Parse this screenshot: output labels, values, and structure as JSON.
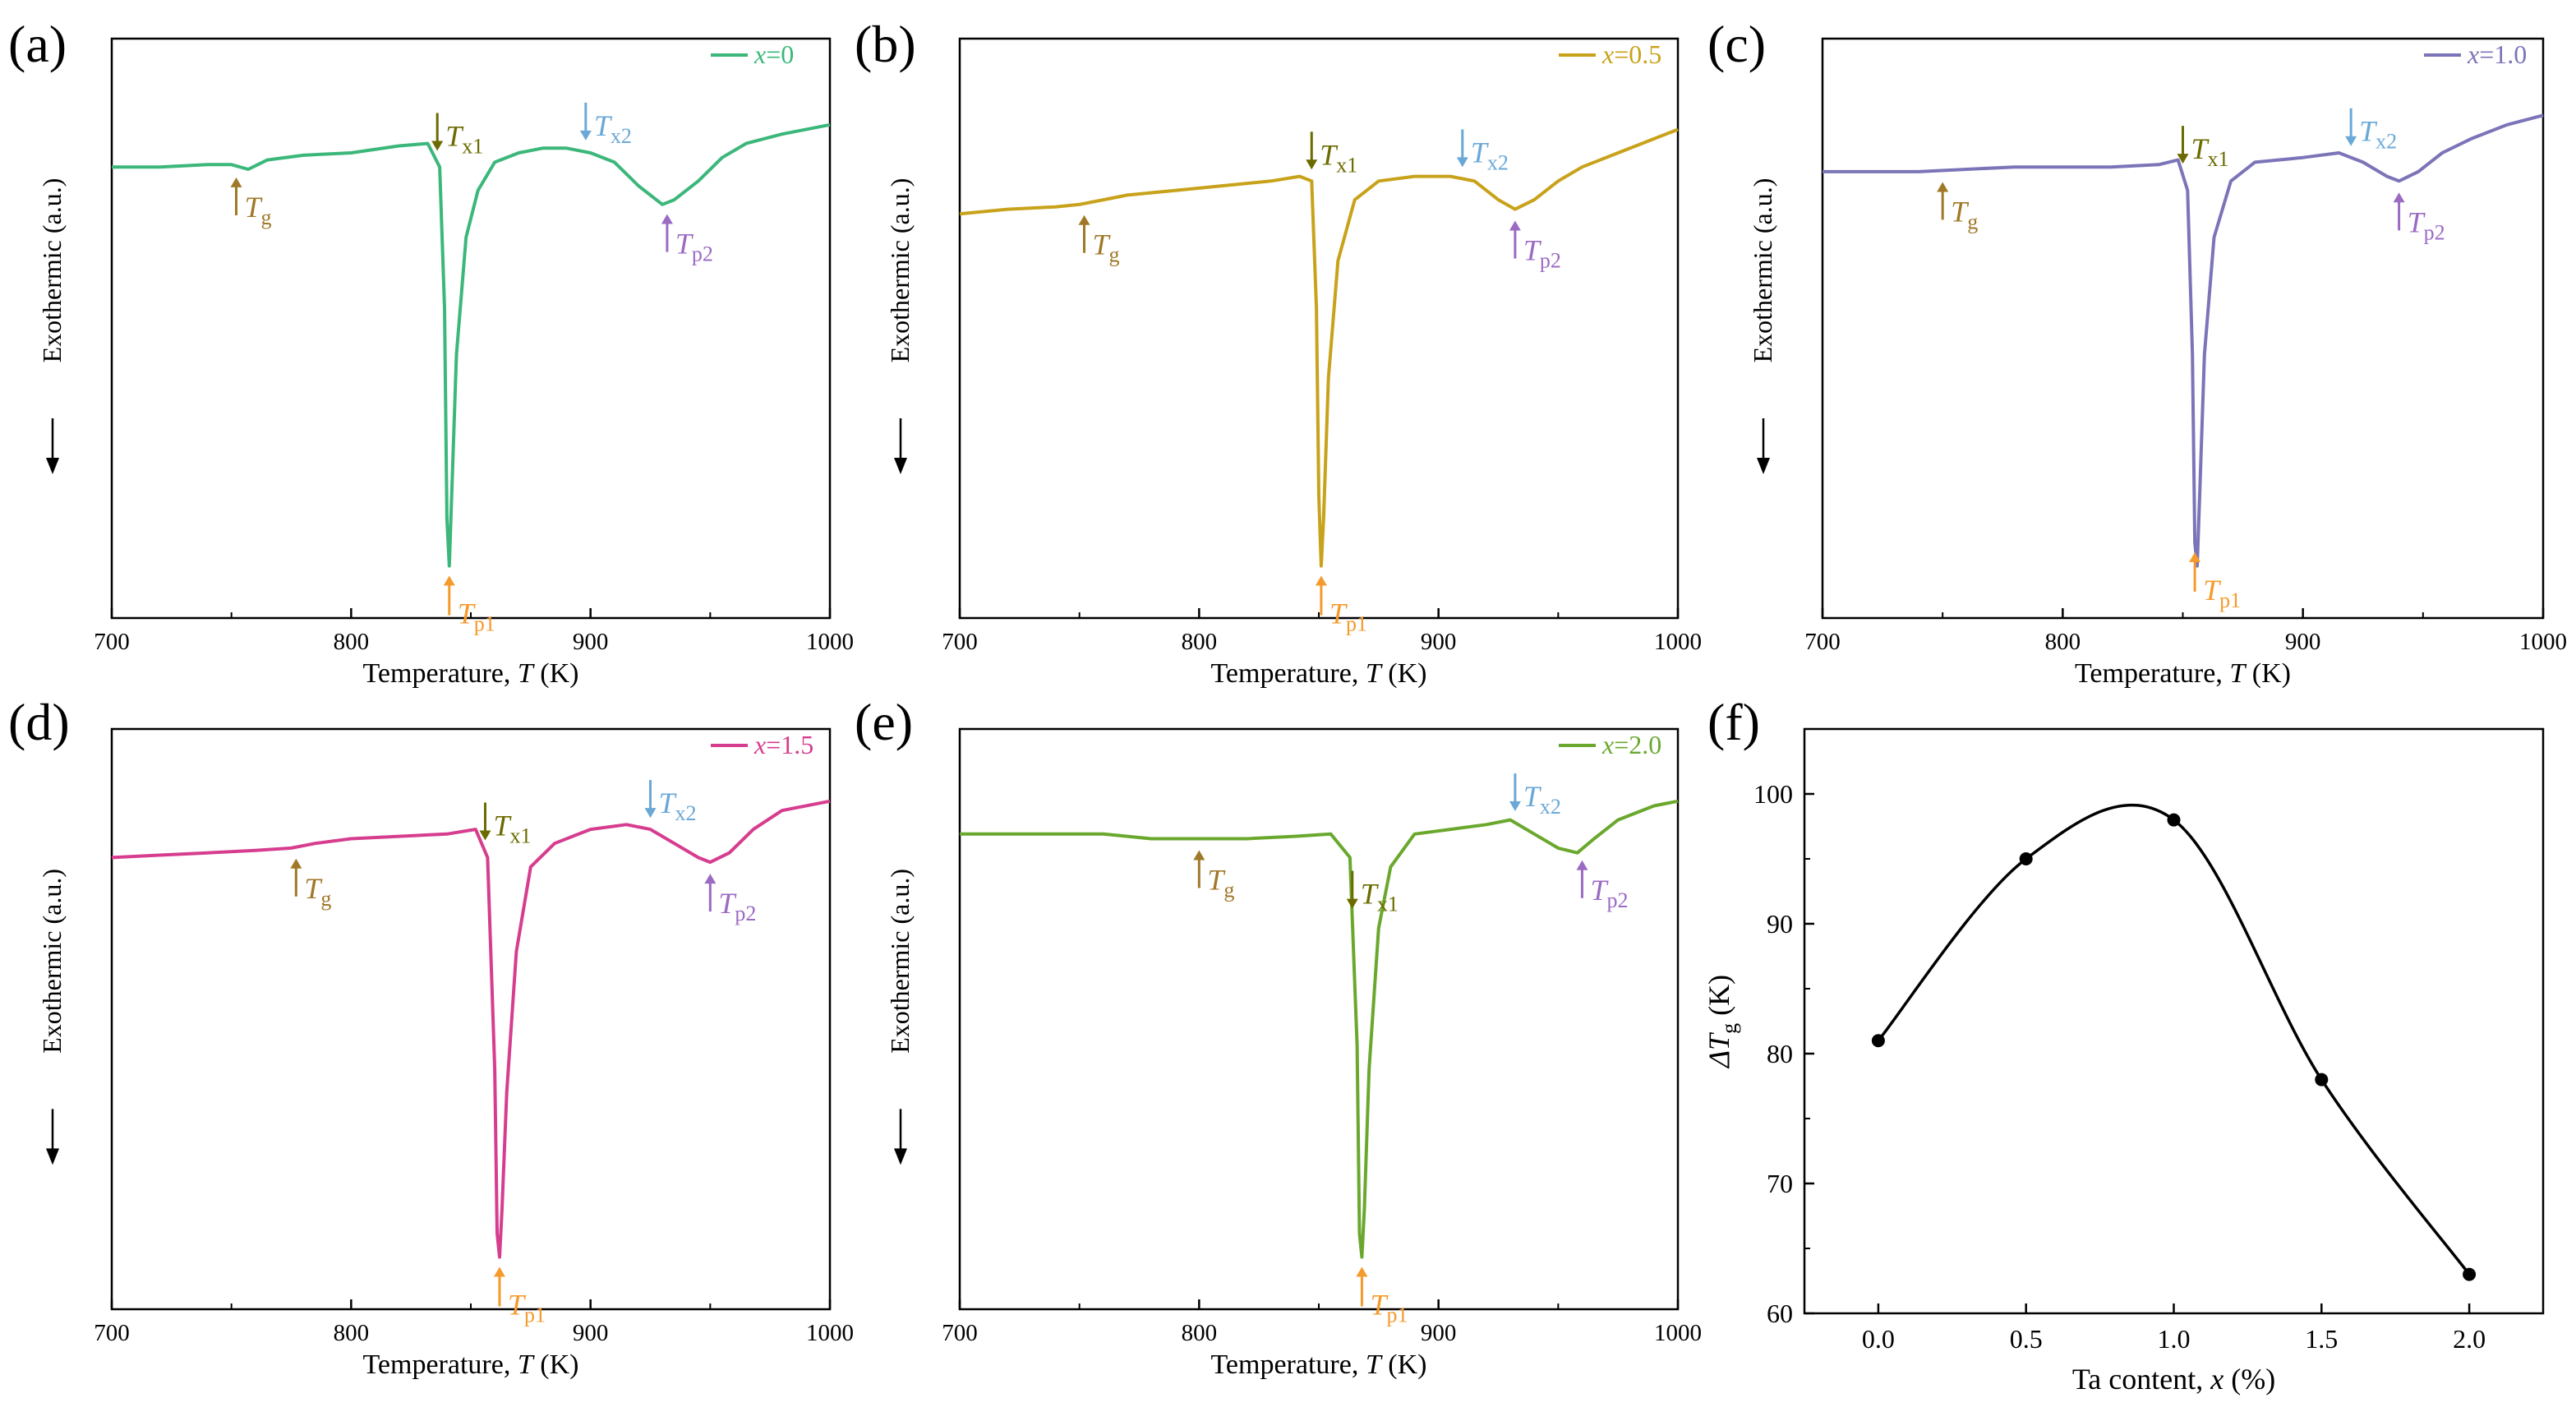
{
  "chart_data": [
    {
      "id": "a",
      "panel_label": "(a)",
      "type": "line",
      "legend": "x=0",
      "legend_var": "x",
      "legend_value": "=0",
      "color": "#3cb77a",
      "xlim": [
        700,
        1000
      ],
      "x_ticks": [
        700,
        800,
        900,
        1000
      ],
      "xlabel": "Temperature, T (K)",
      "xlabel_pre": "Temperature, ",
      "xlabel_var": "T",
      "xlabel_post": " (K)",
      "ylabel": "Exothermic (a.u.)",
      "series": [
        {
          "name": "x=0",
          "x": [
            700,
            720,
            740,
            750,
            757,
            765,
            780,
            800,
            820,
            832,
            837,
            839,
            840,
            841,
            842,
            844,
            848,
            853,
            860,
            870,
            880,
            890,
            900,
            910,
            920,
            930,
            935,
            945,
            955,
            965,
            980,
            1000
          ],
          "y": [
            0.85,
            0.85,
            0.855,
            0.855,
            0.845,
            0.865,
            0.875,
            0.88,
            0.895,
            0.9,
            0.85,
            0.55,
            0.1,
            0.0,
            0.15,
            0.45,
            0.7,
            0.8,
            0.86,
            0.88,
            0.89,
            0.89,
            0.88,
            0.86,
            0.81,
            0.77,
            0.78,
            0.82,
            0.87,
            0.9,
            0.92,
            0.94
          ]
        }
      ],
      "annotations": [
        {
          "base": "T",
          "sub": "g",
          "x": 752,
          "dir": "up",
          "color": "#a07828"
        },
        {
          "base": "T",
          "sub": "x1",
          "x": 836,
          "dir": "down",
          "color": "#6b6b00"
        },
        {
          "base": "T",
          "sub": "p1",
          "x": 841,
          "dir": "up",
          "color": "#f59a2c"
        },
        {
          "base": "T",
          "sub": "x2",
          "x": 898,
          "dir": "down",
          "color": "#6aa8d8"
        },
        {
          "base": "T",
          "sub": "p2",
          "x": 932,
          "dir": "up",
          "color": "#9b6bc3"
        }
      ]
    },
    {
      "id": "b",
      "panel_label": "(b)",
      "type": "line",
      "legend": "x=0.5",
      "legend_var": "x",
      "legend_value": "=0.5",
      "color": "#c8a21a",
      "xlim": [
        700,
        1000
      ],
      "x_ticks": [
        700,
        800,
        900,
        1000
      ],
      "xlabel": "Temperature, T (K)",
      "xlabel_pre": "Temperature, ",
      "xlabel_var": "T",
      "xlabel_post": " (K)",
      "ylabel": "Exothermic (a.u.)",
      "series": [
        {
          "name": "x=0.5",
          "x": [
            700,
            720,
            740,
            750,
            760,
            770,
            790,
            810,
            830,
            842,
            847,
            849,
            850,
            851,
            852,
            854,
            858,
            865,
            875,
            890,
            905,
            915,
            925,
            932,
            940,
            950,
            960,
            975,
            990,
            1000
          ],
          "y": [
            0.75,
            0.76,
            0.765,
            0.77,
            0.78,
            0.79,
            0.8,
            0.81,
            0.82,
            0.83,
            0.82,
            0.55,
            0.15,
            0.0,
            0.1,
            0.4,
            0.65,
            0.78,
            0.82,
            0.83,
            0.83,
            0.82,
            0.78,
            0.76,
            0.78,
            0.82,
            0.85,
            0.88,
            0.91,
            0.93
          ]
        }
      ],
      "annotations": [
        {
          "base": "T",
          "sub": "g",
          "x": 752,
          "dir": "up",
          "color": "#a07828"
        },
        {
          "base": "T",
          "sub": "x1",
          "x": 847,
          "dir": "down",
          "color": "#6b6b00"
        },
        {
          "base": "T",
          "sub": "p1",
          "x": 851,
          "dir": "up",
          "color": "#f59a2c"
        },
        {
          "base": "T",
          "sub": "x2",
          "x": 910,
          "dir": "down",
          "color": "#6aa8d8"
        },
        {
          "base": "T",
          "sub": "p2",
          "x": 932,
          "dir": "up",
          "color": "#9b6bc3"
        }
      ]
    },
    {
      "id": "c",
      "panel_label": "(c)",
      "type": "line",
      "legend": "x=1.0",
      "legend_var": "x",
      "legend_value": "=1.0",
      "color": "#7b74b8",
      "xlim": [
        700,
        1000
      ],
      "x_ticks": [
        700,
        800,
        900,
        1000
      ],
      "xlabel": "Temperature, T (K)",
      "xlabel_pre": "Temperature, ",
      "xlabel_var": "T",
      "xlabel_post": " (K)",
      "ylabel": "Exothermic (a.u.)",
      "series": [
        {
          "name": "x=1.0",
          "x": [
            700,
            720,
            740,
            760,
            780,
            800,
            820,
            840,
            848,
            852,
            854,
            855,
            856,
            857,
            859,
            863,
            870,
            880,
            900,
            915,
            925,
            935,
            940,
            948,
            958,
            970,
            985,
            1000
          ],
          "y": [
            0.84,
            0.84,
            0.84,
            0.845,
            0.85,
            0.85,
            0.85,
            0.855,
            0.865,
            0.8,
            0.45,
            0.05,
            0.0,
            0.15,
            0.45,
            0.7,
            0.82,
            0.86,
            0.87,
            0.88,
            0.86,
            0.83,
            0.82,
            0.84,
            0.88,
            0.91,
            0.94,
            0.96
          ]
        }
      ],
      "annotations": [
        {
          "base": "T",
          "sub": "g",
          "x": 750,
          "dir": "up",
          "color": "#a07828"
        },
        {
          "base": "T",
          "sub": "x1",
          "x": 850,
          "dir": "down",
          "color": "#6b6b00"
        },
        {
          "base": "T",
          "sub": "p1",
          "x": 855,
          "dir": "up",
          "color": "#f59a2c"
        },
        {
          "base": "T",
          "sub": "x2",
          "x": 920,
          "dir": "down",
          "color": "#6aa8d8"
        },
        {
          "base": "T",
          "sub": "p2",
          "x": 940,
          "dir": "up",
          "color": "#9b6bc3"
        }
      ]
    },
    {
      "id": "d",
      "panel_label": "(d)",
      "type": "line",
      "legend": "x=1.5",
      "legend_var": "x",
      "legend_value": "=1.5",
      "color": "#d63d8f",
      "xlim": [
        700,
        1000
      ],
      "x_ticks": [
        700,
        800,
        900,
        1000
      ],
      "xlabel": "Temperature, T (K)",
      "xlabel_pre": "Temperature, ",
      "xlabel_var": "T",
      "xlabel_post": " (K)",
      "ylabel": "Exothermic (a.u.)",
      "series": [
        {
          "name": "x=1.5",
          "x": [
            700,
            720,
            740,
            760,
            775,
            785,
            800,
            820,
            840,
            852,
            857,
            860,
            861,
            862,
            863,
            865,
            869,
            875,
            885,
            900,
            915,
            925,
            935,
            945,
            950,
            958,
            968,
            980,
            1000
          ],
          "y": [
            0.85,
            0.855,
            0.86,
            0.865,
            0.87,
            0.88,
            0.89,
            0.895,
            0.9,
            0.91,
            0.85,
            0.4,
            0.05,
            0.0,
            0.1,
            0.35,
            0.65,
            0.83,
            0.88,
            0.91,
            0.92,
            0.91,
            0.88,
            0.85,
            0.84,
            0.86,
            0.91,
            0.95,
            0.97
          ]
        }
      ],
      "annotations": [
        {
          "base": "T",
          "sub": "g",
          "x": 777,
          "dir": "up",
          "color": "#a07828"
        },
        {
          "base": "T",
          "sub": "x1",
          "x": 856,
          "dir": "down",
          "color": "#6b6b00"
        },
        {
          "base": "T",
          "sub": "p1",
          "x": 862,
          "dir": "up",
          "color": "#f59a2c"
        },
        {
          "base": "T",
          "sub": "x2",
          "x": 925,
          "dir": "down",
          "color": "#6aa8d8"
        },
        {
          "base": "T",
          "sub": "p2",
          "x": 950,
          "dir": "up",
          "color": "#9b6bc3"
        }
      ]
    },
    {
      "id": "e",
      "panel_label": "(e)",
      "type": "line",
      "legend": "x=2.0",
      "legend_var": "x",
      "legend_value": "=2.0",
      "color": "#6aa82d",
      "xlim": [
        700,
        1000
      ],
      "x_ticks": [
        700,
        800,
        900,
        1000
      ],
      "xlabel": "Temperature, T (K)",
      "xlabel_pre": "Temperature, ",
      "xlabel_var": "T",
      "xlabel_post": " (K)",
      "ylabel": "Exothermic (a.u.)",
      "series": [
        {
          "name": "x=2.0",
          "x": [
            700,
            720,
            740,
            760,
            780,
            800,
            820,
            840,
            855,
            863,
            866,
            867,
            868,
            869,
            871,
            875,
            880,
            890,
            905,
            920,
            930,
            940,
            950,
            958,
            965,
            975,
            990,
            1000
          ],
          "y": [
            0.9,
            0.9,
            0.9,
            0.9,
            0.89,
            0.89,
            0.89,
            0.895,
            0.9,
            0.85,
            0.45,
            0.05,
            0.0,
            0.1,
            0.4,
            0.7,
            0.83,
            0.9,
            0.91,
            0.92,
            0.93,
            0.9,
            0.87,
            0.86,
            0.89,
            0.93,
            0.96,
            0.97
          ]
        }
      ],
      "annotations": [
        {
          "base": "T",
          "sub": "g",
          "x": 800,
          "dir": "up",
          "color": "#a07828"
        },
        {
          "base": "T",
          "sub": "x1",
          "x": 864,
          "dir": "down",
          "color": "#6b6b00"
        },
        {
          "base": "T",
          "sub": "p1",
          "x": 868,
          "dir": "up",
          "color": "#f59a2c"
        },
        {
          "base": "T",
          "sub": "x2",
          "x": 932,
          "dir": "down",
          "color": "#6aa8d8"
        },
        {
          "base": "T",
          "sub": "p2",
          "x": 960,
          "dir": "up",
          "color": "#9b6bc3"
        }
      ]
    },
    {
      "id": "f",
      "panel_label": "(f)",
      "type": "line",
      "color": "#000000",
      "x": [
        0.0,
        0.5,
        1.0,
        1.5,
        2.0
      ],
      "y": [
        81,
        95,
        98,
        78,
        63
      ],
      "xlim": [
        -0.25,
        2.25
      ],
      "ylim": [
        60,
        105
      ],
      "x_ticks": [
        "0.0",
        "0.5",
        "1.0",
        "1.5",
        "2.0"
      ],
      "y_ticks": [
        60,
        70,
        80,
        90,
        100
      ],
      "xlabel": "Ta content, x (%)",
      "xlabel_pre": "Ta content, ",
      "xlabel_var": "x",
      "xlabel_post": " (%)",
      "ylabel": "ΔTg (K)",
      "ylabel_pre": "ΔT",
      "ylabel_sub": "g",
      "ylabel_post": " (K)"
    }
  ]
}
